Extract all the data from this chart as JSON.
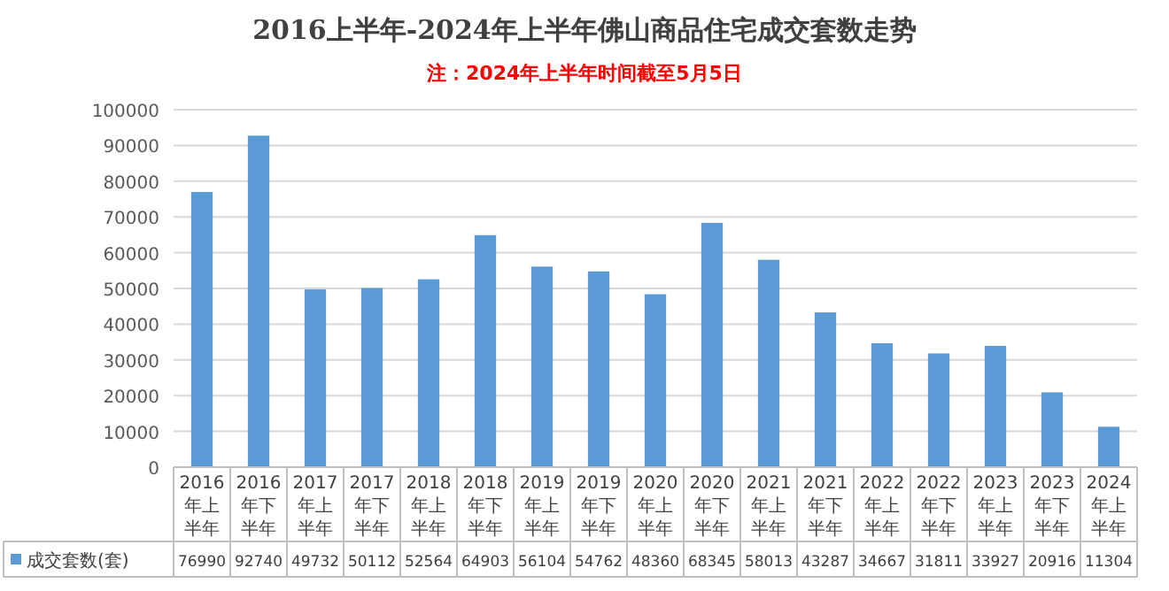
{
  "chart_data": {
    "type": "bar",
    "title": "2016上半年-2024年上半年佛山商品住宅成交套数走势",
    "subtitle": "注：2024年上半年时间截至5月5日",
    "categories": [
      "2016年上半年",
      "2016年下半年",
      "2017年上半年",
      "2017年下半年",
      "2018年上半年",
      "2018年下半年",
      "2019年上半年",
      "2019年下半年",
      "2020年上半年",
      "2020年下半年",
      "2021年上半年",
      "2021年下半年",
      "2022年上半年",
      "2022年下半年",
      "2023年上半年",
      "2023年下半年",
      "2024年上半年"
    ],
    "series": [
      {
        "name": "成交套数(套)",
        "color": "#5b9bd5",
        "values": [
          76990,
          92740,
          49732,
          50112,
          52564,
          64903,
          56104,
          54762,
          48360,
          68345,
          58013,
          43287,
          34667,
          31811,
          33927,
          20916,
          11304
        ]
      }
    ],
    "ylim": [
      0,
      100000
    ],
    "yticks": [
      0,
      10000,
      20000,
      30000,
      40000,
      50000,
      60000,
      70000,
      80000,
      90000,
      100000
    ],
    "grid": "y",
    "data_labels": true,
    "legend": "bottom left"
  }
}
